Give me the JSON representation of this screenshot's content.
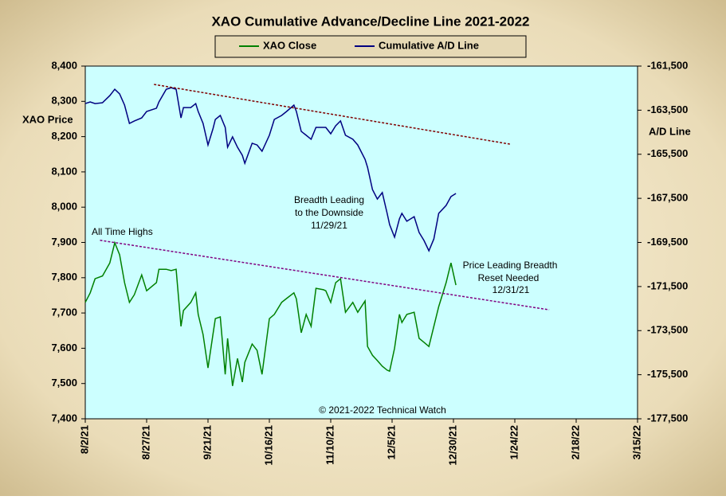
{
  "chart_data": {
    "type": "line",
    "title": "XAO Cumulative Advance/Decline Line 2021-2022",
    "ylabel": "XAO Price",
    "y2label": "A/D Line",
    "legend": "top",
    "background": "#ccffff",
    "xlim": [
      "2021-08-02",
      "2022-03-15"
    ],
    "xticks": [
      {
        "value": "2021-08-02",
        "label": "8/2/21"
      },
      {
        "value": "2021-08-27",
        "label": "8/27/21"
      },
      {
        "value": "2021-09-21",
        "label": "9/21/21"
      },
      {
        "value": "2021-10-16",
        "label": "10/16/21"
      },
      {
        "value": "2021-11-10",
        "label": "11/10/21"
      },
      {
        "value": "2021-12-05",
        "label": "12/5/21"
      },
      {
        "value": "2021-12-30",
        "label": "12/30/21"
      },
      {
        "value": "2022-01-24",
        "label": "1/24/22"
      },
      {
        "value": "2022-02-18",
        "label": "2/18/22"
      },
      {
        "value": "2022-03-15",
        "label": "3/15/22"
      }
    ],
    "ylim": [
      7400,
      8400
    ],
    "yticks": [
      {
        "value": 7400,
        "label": "7,400"
      },
      {
        "value": 7500,
        "label": "7,500"
      },
      {
        "value": 7600,
        "label": "7,600"
      },
      {
        "value": 7700,
        "label": "7,700"
      },
      {
        "value": 7800,
        "label": "7,800"
      },
      {
        "value": 7900,
        "label": "7,900"
      },
      {
        "value": 8000,
        "label": "8,000"
      },
      {
        "value": 8100,
        "label": "8,100"
      },
      {
        "value": 8200,
        "label": "8,200"
      },
      {
        "value": 8300,
        "label": "8,300"
      },
      {
        "value": 8400,
        "label": "8,400"
      }
    ],
    "y2lim": [
      -177500,
      -161500
    ],
    "y2ticks": [
      {
        "value": -177500,
        "label": "-177,500"
      },
      {
        "value": -175500,
        "label": "-175,500"
      },
      {
        "value": -173500,
        "label": "-173,500"
      },
      {
        "value": -171500,
        "label": "-171,500"
      },
      {
        "value": -169500,
        "label": "-169,500"
      },
      {
        "value": -167500,
        "label": "-167,500"
      },
      {
        "value": -165500,
        "label": "-165,500"
      },
      {
        "value": -163500,
        "label": "-163,500"
      },
      {
        "value": -161500,
        "label": "-161,500"
      }
    ],
    "x": [
      "2021-08-02",
      "2021-08-04",
      "2021-08-06",
      "2021-08-09",
      "2021-08-12",
      "2021-08-14",
      "2021-08-16",
      "2021-08-18",
      "2021-08-20",
      "2021-08-22",
      "2021-08-25",
      "2021-08-27",
      "2021-08-31",
      "2021-09-01",
      "2021-09-04",
      "2021-09-06",
      "2021-09-08",
      "2021-09-10",
      "2021-09-11",
      "2021-09-14",
      "2021-09-16",
      "2021-09-17",
      "2021-09-19",
      "2021-09-21",
      "2021-09-23",
      "2021-09-24",
      "2021-09-26",
      "2021-09-28",
      "2021-09-29",
      "2021-10-01",
      "2021-10-03",
      "2021-10-05",
      "2021-10-06",
      "2021-10-09",
      "2021-10-11",
      "2021-10-13",
      "2021-10-16",
      "2021-10-18",
      "2021-10-21",
      "2021-10-23",
      "2021-10-26",
      "2021-10-27",
      "2021-10-29",
      "2021-10-31",
      "2021-11-02",
      "2021-11-04",
      "2021-11-07",
      "2021-11-08",
      "2021-11-10",
      "2021-11-12",
      "2021-11-14",
      "2021-11-16",
      "2021-11-19",
      "2021-11-21",
      "2021-11-24",
      "2021-11-25",
      "2021-11-27",
      "2021-11-29",
      "2021-12-01",
      "2021-12-03",
      "2021-12-04",
      "2021-12-06",
      "2021-12-08",
      "2021-12-09",
      "2021-12-11",
      "2021-12-14",
      "2021-12-16",
      "2021-12-18",
      "2021-12-20",
      "2021-12-22",
      "2021-12-24",
      "2021-12-27",
      "2021-12-29",
      "2021-12-31"
    ],
    "series": [
      {
        "name": "XAO Close",
        "color": "#008000",
        "values": [
          7730,
          7757,
          7797,
          7805,
          7842,
          7899,
          7865,
          7786,
          7730,
          7752,
          7808,
          7763,
          7786,
          7824,
          7824,
          7820,
          7824,
          7662,
          7707,
          7730,
          7757,
          7696,
          7639,
          7544,
          7639,
          7684,
          7689,
          7526,
          7628,
          7493,
          7571,
          7504,
          7560,
          7612,
          7594,
          7526,
          7684,
          7696,
          7730,
          7741,
          7757,
          7740,
          7644,
          7696,
          7662,
          7770,
          7766,
          7763,
          7730,
          7786,
          7797,
          7702,
          7730,
          7702,
          7734,
          7605,
          7580,
          7565,
          7549,
          7538,
          7535,
          7600,
          7696,
          7673,
          7696,
          7702,
          7628,
          7617,
          7605,
          7662,
          7718,
          7786,
          7842,
          7779
        ]
      },
      {
        "name": "Cumulative A/D Line",
        "color": "#000080",
        "axis": "y2",
        "values": [
          -163200,
          -163125,
          -163200,
          -163160,
          -162840,
          -162550,
          -162760,
          -163270,
          -164100,
          -163990,
          -163850,
          -163560,
          -163410,
          -163130,
          -162550,
          -162480,
          -162550,
          -163850,
          -163380,
          -163380,
          -163200,
          -163560,
          -164100,
          -165080,
          -164350,
          -163920,
          -163740,
          -164280,
          -165180,
          -164710,
          -165180,
          -165550,
          -165910,
          -165000,
          -165080,
          -165360,
          -164640,
          -163920,
          -163740,
          -163560,
          -163270,
          -163560,
          -164460,
          -164640,
          -164820,
          -164280,
          -164280,
          -164280,
          -164570,
          -164210,
          -163990,
          -164640,
          -164820,
          -165080,
          -165730,
          -166090,
          -167100,
          -167530,
          -167240,
          -168180,
          -168690,
          -169260,
          -168430,
          -168180,
          -168540,
          -168330,
          -169050,
          -169410,
          -169880,
          -169340,
          -168180,
          -167820,
          -167420,
          -167280
        ]
      }
    ],
    "trendlines": [
      {
        "color": "#800000",
        "axis": "y2",
        "x": [
          "2021-08-30",
          "2022-01-22"
        ],
        "values": [
          -162330,
          -165040
        ]
      },
      {
        "color": "#800080",
        "x": [
          "2021-08-08",
          "2022-02-07"
        ],
        "values": [
          7906,
          7709
        ]
      }
    ],
    "annotations": [
      {
        "text": "All Time Highs",
        "color": "#800080"
      },
      {
        "text": "Breadth Leading",
        "color": "#808080"
      },
      {
        "text": "to the Downside",
        "color": "#808080"
      },
      {
        "text": "11/29/21",
        "color": "#808080"
      },
      {
        "text": "Price Leading Breadth",
        "color": "#e020c0"
      },
      {
        "text": "Reset Needed",
        "color": "#e020c0"
      },
      {
        "text": "12/31/21",
        "color": "#808080"
      },
      {
        "text": "© 2021-2022  Technical Watch",
        "color": "#000000"
      }
    ]
  }
}
